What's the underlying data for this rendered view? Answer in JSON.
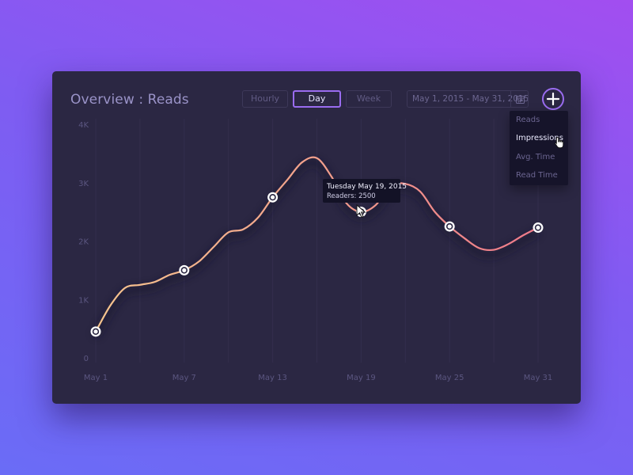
{
  "header": {
    "title": "Overview : Reads",
    "segments": [
      "Hourly",
      "Day",
      "Week"
    ],
    "active_segment": "Day",
    "date_range": "May 1, 2015 - May 31, 2015"
  },
  "menu": {
    "items": [
      "Reads",
      "Impressions",
      "Avg. Time",
      "Read Time"
    ],
    "selected": "Impressions"
  },
  "tooltip": {
    "line1": "Tuesday May 19, 2015",
    "line2": "Readers: 2500"
  },
  "colors": {
    "line_start": "#f6c58e",
    "line_end": "#ef7a8a",
    "accent": "#9a6cf0"
  },
  "chart_data": {
    "type": "line",
    "x": [
      1,
      7,
      13,
      19,
      25,
      31
    ],
    "x_tick_labels": [
      "May 1",
      "May 7",
      "May 13",
      "May 19",
      "May 25",
      "May 31"
    ],
    "y_tick_labels": [
      "0",
      "1K",
      "2K",
      "3K",
      "4K"
    ],
    "y_ticks": [
      0,
      1000,
      2000,
      3000,
      4000
    ],
    "ylim": [
      0,
      4000
    ],
    "xlim": [
      1,
      31
    ],
    "markers": [
      {
        "x": 1,
        "y": 450
      },
      {
        "x": 7,
        "y": 1500
      },
      {
        "x": 13,
        "y": 2750
      },
      {
        "x": 19,
        "y": 2500
      },
      {
        "x": 25,
        "y": 2250
      },
      {
        "x": 31,
        "y": 2230
      }
    ],
    "curve": [
      {
        "x": 1,
        "y": 450
      },
      {
        "x": 2,
        "y": 900
      },
      {
        "x": 3,
        "y": 1200
      },
      {
        "x": 4,
        "y": 1250
      },
      {
        "x": 5,
        "y": 1300
      },
      {
        "x": 6,
        "y": 1420
      },
      {
        "x": 7,
        "y": 1500
      },
      {
        "x": 8,
        "y": 1650
      },
      {
        "x": 9,
        "y": 1900
      },
      {
        "x": 10,
        "y": 2150
      },
      {
        "x": 11,
        "y": 2200
      },
      {
        "x": 12,
        "y": 2400
      },
      {
        "x": 13,
        "y": 2750
      },
      {
        "x": 14,
        "y": 3050
      },
      {
        "x": 15,
        "y": 3350
      },
      {
        "x": 16,
        "y": 3420
      },
      {
        "x": 17,
        "y": 3100
      },
      {
        "x": 18,
        "y": 2650
      },
      {
        "x": 19,
        "y": 2500
      },
      {
        "x": 20,
        "y": 2620
      },
      {
        "x": 21,
        "y": 2950
      },
      {
        "x": 22,
        "y": 2980
      },
      {
        "x": 23,
        "y": 2850
      },
      {
        "x": 24,
        "y": 2500
      },
      {
        "x": 25,
        "y": 2250
      },
      {
        "x": 26,
        "y": 2050
      },
      {
        "x": 27,
        "y": 1880
      },
      {
        "x": 28,
        "y": 1850
      },
      {
        "x": 29,
        "y": 1950
      },
      {
        "x": 30,
        "y": 2100
      },
      {
        "x": 31,
        "y": 2230
      }
    ],
    "grid": true,
    "legend": "none",
    "highlighted_point": {
      "x": 19,
      "y": 2500
    }
  }
}
